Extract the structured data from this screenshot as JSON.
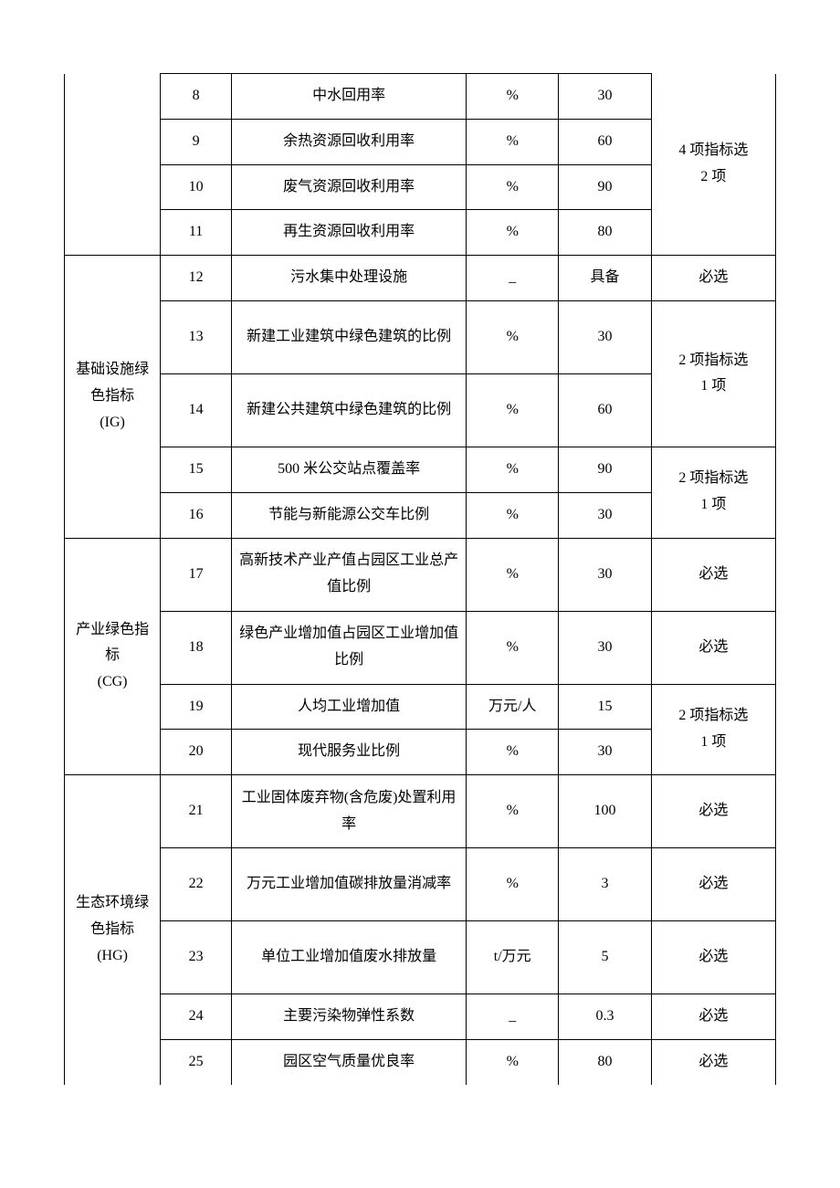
{
  "categories": {
    "cat1": "",
    "cat2_line1": "基础设施绿",
    "cat2_line2": "色指标",
    "cat2_line3": "(IG)",
    "cat3_line1": "产业绿色指",
    "cat3_line2": "标",
    "cat3_line3": "(CG)",
    "cat4_line1": "生态环境绿",
    "cat4_line2": "色指标",
    "cat4_line3": "(HG)"
  },
  "rows": {
    "r8": {
      "num": "8",
      "name": "中水回用率",
      "unit": "%",
      "ref": "30"
    },
    "r9": {
      "num": "9",
      "name": "余热资源回收利用率",
      "unit": "%",
      "ref": "60"
    },
    "r10": {
      "num": "10",
      "name": "废气资源回收利用率",
      "unit": "%",
      "ref": "90"
    },
    "r11": {
      "num": "11",
      "name": "再生资源回收利用率",
      "unit": "%",
      "ref": "80"
    },
    "r12": {
      "num": "12",
      "name": "污水集中处理设施",
      "unit": "_",
      "ref": "具备"
    },
    "r13": {
      "num": "13",
      "name": "新建工业建筑中绿色建筑的比例",
      "unit": "%",
      "ref": "30"
    },
    "r14": {
      "num": "14",
      "name": "新建公共建筑中绿色建筑的比例",
      "unit": "%",
      "ref": "60"
    },
    "r15": {
      "num": "15",
      "name": "500 米公交站点覆盖率",
      "unit": "%",
      "ref": "90"
    },
    "r16": {
      "num": "16",
      "name": "节能与新能源公交车比例",
      "unit": "%",
      "ref": "30"
    },
    "r17": {
      "num": "17",
      "name": "高新技术产业产值占园区工业总产值比例",
      "unit": "%",
      "ref": "30"
    },
    "r18": {
      "num": "18",
      "name": "绿色产业增加值占园区工业增加值比例",
      "unit": "%",
      "ref": "30"
    },
    "r19": {
      "num": "19",
      "name": "人均工业增加值",
      "unit": "万元/人",
      "ref": "15"
    },
    "r20": {
      "num": "20",
      "name": "现代服务业比例",
      "unit": "%",
      "ref": "30"
    },
    "r21": {
      "num": "21",
      "name": "工业固体废弃物(含危废)处置利用率",
      "unit": "%",
      "ref": "100"
    },
    "r22": {
      "num": "22",
      "name": "万元工业增加值碳排放量消减率",
      "unit": "%",
      "ref": "3"
    },
    "r23": {
      "num": "23",
      "name": "单位工业增加值废水排放量",
      "unit": "t/万元",
      "ref": "5"
    },
    "r24": {
      "num": "24",
      "name": "主要污染物弹性系数",
      "unit": "_",
      "ref": "0.3"
    },
    "r25": {
      "num": "25",
      "name": "园区空气质量优良率",
      "unit": "%",
      "ref": "80"
    }
  },
  "notes": {
    "n1_line1": "4 项指标选",
    "n1_line2": "2 项",
    "n2": "必选",
    "n3_line1": "2 项指标选",
    "n3_line2": "1 项",
    "n4_line1": "2 项指标选",
    "n4_line2": "1 项",
    "n5": "必选",
    "n6": "必选",
    "n7_line1": "2 项指标选",
    "n7_line2": "1 项",
    "n8": "必选",
    "n9": "必选",
    "n10": "必选",
    "n11": "必选",
    "n12": "必选"
  }
}
